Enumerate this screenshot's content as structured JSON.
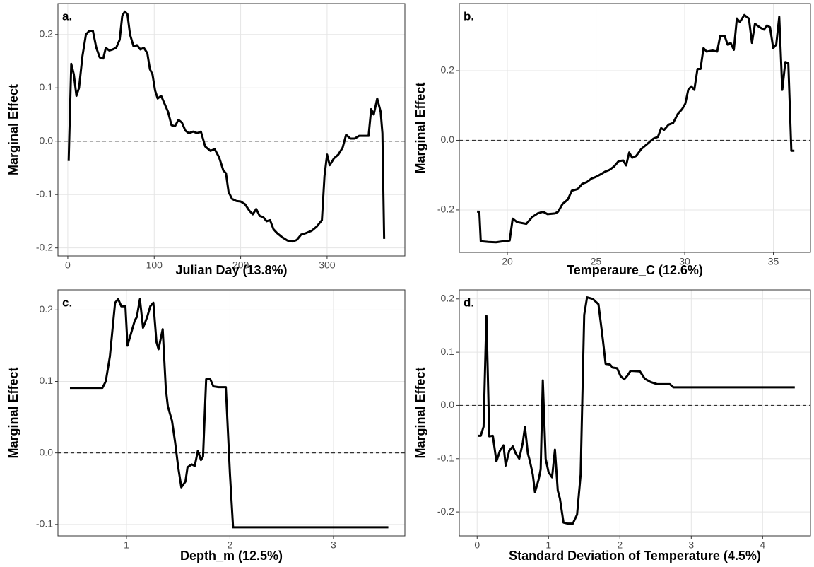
{
  "chart_data": [
    {
      "type": "line",
      "title": "a.",
      "xlabel": "Julian Day (13.8%)",
      "ylabel": "Marginal Effect",
      "color": "#000000",
      "grid": true,
      "hline": 0,
      "x": [
        1,
        4,
        7,
        10,
        13,
        17,
        21,
        25,
        29,
        33,
        37,
        41,
        44,
        48,
        52,
        56,
        60,
        63,
        66,
        69,
        72,
        76,
        80,
        84,
        88,
        92,
        95,
        98,
        101,
        104,
        108,
        112,
        116,
        120,
        124,
        128,
        132,
        136,
        140,
        145,
        150,
        154,
        159,
        165,
        170,
        175,
        180,
        183,
        186,
        190,
        195,
        200,
        205,
        210,
        214,
        218,
        222,
        226,
        230,
        234,
        238,
        242,
        248,
        254,
        260,
        265,
        270,
        276,
        282,
        288,
        294,
        297,
        300,
        303,
        308,
        313,
        318,
        322,
        327,
        332,
        337,
        343,
        348,
        351,
        354,
        358,
        362,
        364,
        366
      ],
      "values": [
        -0.037,
        0.145,
        0.125,
        0.085,
        0.1,
        0.16,
        0.2,
        0.207,
        0.207,
        0.175,
        0.157,
        0.155,
        0.175,
        0.17,
        0.172,
        0.175,
        0.19,
        0.235,
        0.243,
        0.238,
        0.2,
        0.178,
        0.18,
        0.172,
        0.175,
        0.165,
        0.135,
        0.125,
        0.095,
        0.08,
        0.085,
        0.07,
        0.055,
        0.03,
        0.028,
        0.04,
        0.035,
        0.02,
        0.015,
        0.018,
        0.015,
        0.018,
        -0.01,
        -0.018,
        -0.015,
        -0.03,
        -0.055,
        -0.06,
        -0.095,
        -0.108,
        -0.112,
        -0.113,
        -0.118,
        -0.13,
        -0.137,
        -0.127,
        -0.14,
        -0.142,
        -0.15,
        -0.148,
        -0.165,
        -0.172,
        -0.18,
        -0.186,
        -0.188,
        -0.185,
        -0.175,
        -0.172,
        -0.168,
        -0.16,
        -0.148,
        -0.065,
        -0.025,
        -0.045,
        -0.032,
        -0.025,
        -0.012,
        0.012,
        0.005,
        0.005,
        0.01,
        0.01,
        0.01,
        0.06,
        0.05,
        0.08,
        0.055,
        0.015,
        -0.183
      ],
      "xlim": [
        -11.4,
        390
      ],
      "xticks": [
        0,
        100,
        200,
        300
      ],
      "ylim": [
        -0.215,
        0.258
      ],
      "yticks": [
        -0.2,
        -0.1,
        {
          "value": 0,
          "label": "0.0"
        },
        0.1,
        0.2
      ]
    },
    {
      "type": "line",
      "title": "b.",
      "xlabel": "Temperaure_C (12.6%)",
      "ylabel": "Marginal Effect",
      "color": "#000000",
      "grid": true,
      "hline": 0,
      "x": [
        18.29,
        18.42,
        18.5,
        18.93,
        19.36,
        19.78,
        20.13,
        20.3,
        20.55,
        21.07,
        21.41,
        21.71,
        22.01,
        22.26,
        22.69,
        22.86,
        23.11,
        23.41,
        23.63,
        23.97,
        24.22,
        24.48,
        24.74,
        24.99,
        25.25,
        25.51,
        25.76,
        26.02,
        26.27,
        26.53,
        26.7,
        26.87,
        27.04,
        27.26,
        27.55,
        27.9,
        28.24,
        28.49,
        28.67,
        28.84,
        29.09,
        29.35,
        29.6,
        29.86,
        30.03,
        30.2,
        30.37,
        30.54,
        30.72,
        30.89,
        31.06,
        31.23,
        31.57,
        31.83,
        32.0,
        32.25,
        32.42,
        32.59,
        32.77,
        32.94,
        33.11,
        33.36,
        33.62,
        33.79,
        33.96,
        34.22,
        34.47,
        34.64,
        34.81,
        34.99,
        35.16,
        35.33,
        35.5,
        35.67,
        35.84,
        36.01,
        36.18
      ],
      "values": [
        -0.205,
        -0.205,
        -0.29,
        -0.292,
        -0.293,
        -0.29,
        -0.288,
        -0.225,
        -0.235,
        -0.24,
        -0.22,
        -0.21,
        -0.205,
        -0.212,
        -0.21,
        -0.205,
        -0.183,
        -0.17,
        -0.145,
        -0.14,
        -0.125,
        -0.12,
        -0.11,
        -0.105,
        -0.098,
        -0.09,
        -0.085,
        -0.075,
        -0.06,
        -0.058,
        -0.072,
        -0.035,
        -0.05,
        -0.045,
        -0.025,
        -0.01,
        0.005,
        0.01,
        0.035,
        0.03,
        0.045,
        0.05,
        0.075,
        0.09,
        0.105,
        0.145,
        0.155,
        0.145,
        0.205,
        0.205,
        0.265,
        0.255,
        0.258,
        0.255,
        0.3,
        0.3,
        0.275,
        0.28,
        0.26,
        0.35,
        0.34,
        0.36,
        0.35,
        0.28,
        0.335,
        0.325,
        0.318,
        0.33,
        0.325,
        0.265,
        0.275,
        0.355,
        0.145,
        0.225,
        0.222,
        -0.03,
        -0.03
      ],
      "xlim": [
        17.29,
        37.09
      ],
      "xticks": [
        20,
        25,
        30,
        35
      ],
      "ylim": [
        -0.322,
        0.393
      ],
      "yticks": [
        -0.2,
        {
          "value": 0,
          "label": "0.0"
        },
        0.2
      ]
    },
    {
      "type": "line",
      "title": "c.",
      "xlabel": "Depth_m (12.5%)",
      "ylabel": "Marginal Effect",
      "color": "#000000",
      "grid": true,
      "hline": 0,
      "x": [
        0.454,
        0.768,
        0.8,
        0.84,
        0.87,
        0.89,
        0.92,
        0.95,
        0.99,
        1.01,
        1.05,
        1.08,
        1.1,
        1.13,
        1.16,
        1.2,
        1.23,
        1.26,
        1.29,
        1.31,
        1.35,
        1.38,
        1.4,
        1.44,
        1.47,
        1.5,
        1.53,
        1.57,
        1.59,
        1.63,
        1.66,
        1.69,
        1.72,
        1.74,
        1.77,
        1.81,
        1.84,
        1.89,
        1.96,
        2.0,
        2.03,
        3.53
      ],
      "values": [
        0.091,
        0.091,
        0.1,
        0.135,
        0.18,
        0.21,
        0.215,
        0.205,
        0.205,
        0.15,
        0.17,
        0.185,
        0.19,
        0.215,
        0.175,
        0.19,
        0.205,
        0.21,
        0.155,
        0.145,
        0.173,
        0.09,
        0.065,
        0.045,
        0.015,
        -0.02,
        -0.048,
        -0.04,
        -0.02,
        -0.016,
        -0.018,
        0.003,
        -0.01,
        -0.005,
        0.103,
        0.103,
        0.093,
        0.092,
        0.092,
        -0.03,
        -0.104,
        -0.104
      ],
      "xlim": [
        0.338,
        3.69
      ],
      "xticks": [
        1,
        2,
        3
      ],
      "ylim": [
        -0.116,
        0.228
      ],
      "yticks": [
        -0.1,
        {
          "value": 0,
          "label": "0.0"
        },
        0.1,
        0.2
      ]
    },
    {
      "type": "line",
      "title": "d.",
      "xlabel": "Standard Deviation of Temperature (4.5%)",
      "ylabel": "Marginal Effect",
      "color": "#000000",
      "grid": true,
      "hline": 0,
      "x": [
        0.01,
        0.05,
        0.09,
        0.13,
        0.17,
        0.22,
        0.27,
        0.32,
        0.37,
        0.4,
        0.45,
        0.5,
        0.54,
        0.59,
        0.64,
        0.67,
        0.71,
        0.74,
        0.78,
        0.81,
        0.86,
        0.89,
        0.92,
        0.96,
        1.0,
        1.05,
        1.09,
        1.13,
        1.16,
        1.21,
        1.27,
        1.34,
        1.4,
        1.45,
        1.5,
        1.54,
        1.62,
        1.7,
        1.76,
        1.8,
        1.86,
        1.9,
        1.96,
        2.01,
        2.06,
        2.1,
        2.15,
        2.28,
        2.35,
        2.43,
        2.52,
        2.7,
        2.75,
        4.45
      ],
      "values": [
        -0.057,
        -0.057,
        -0.04,
        0.168,
        -0.058,
        -0.057,
        -0.105,
        -0.085,
        -0.075,
        -0.113,
        -0.085,
        -0.077,
        -0.09,
        -0.1,
        -0.07,
        -0.04,
        -0.09,
        -0.105,
        -0.13,
        -0.163,
        -0.14,
        -0.12,
        0.047,
        -0.1,
        -0.125,
        -0.135,
        -0.083,
        -0.16,
        -0.175,
        -0.22,
        -0.222,
        -0.222,
        -0.205,
        -0.13,
        0.17,
        0.203,
        0.2,
        0.19,
        0.125,
        0.078,
        0.077,
        0.071,
        0.07,
        0.055,
        0.049,
        0.055,
        0.065,
        0.064,
        0.05,
        0.044,
        0.04,
        0.04,
        0.034,
        0.034
      ],
      "xlim": [
        -0.25,
        4.67
      ],
      "xticks": [
        0,
        1,
        2,
        3,
        4
      ],
      "ylim": [
        -0.245,
        0.217
      ],
      "yticks": [
        -0.2,
        -0.1,
        {
          "value": 0,
          "label": "0.0"
        },
        0.1,
        0.2
      ]
    }
  ]
}
